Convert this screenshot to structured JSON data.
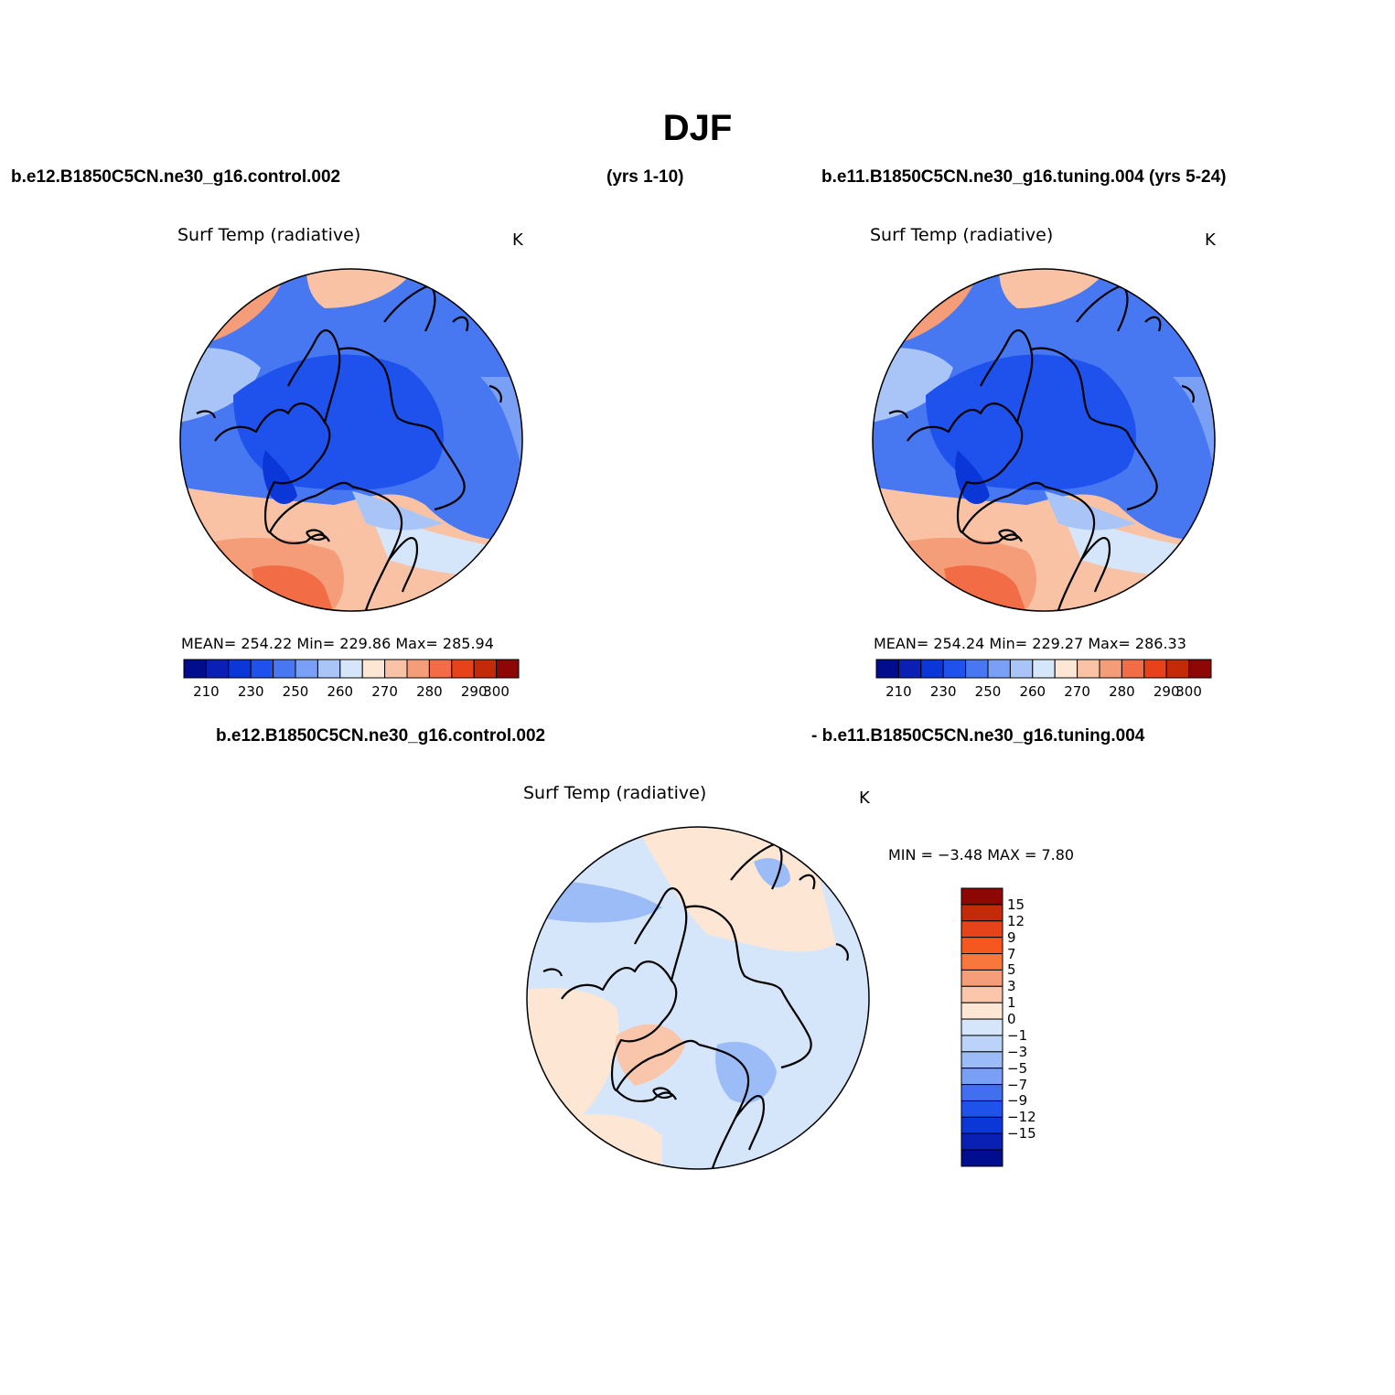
{
  "title": "DJF",
  "case1_label": "b.e12.B1850C5CN.ne30_g16.control.002",
  "case1_years": "(yrs 1-10)",
  "case2_label": "b.e11.B1850C5CN.ne30_g16.tuning.004 (yrs 5-24)",
  "diff_label_a": "b.e12.B1850C5CN.ne30_g16.control.002",
  "diff_label_b": "- b.e11.B1850C5CN.ne30_g16.tuning.004",
  "panels": [
    {
      "id": "control",
      "variable": "Surf Temp (radiative)",
      "units": "K",
      "stats": "MEAN= 254.22   Min= 229.86   Max= 285.94",
      "colorbar_ticks": [
        "210",
        "230",
        "250",
        "260",
        "270",
        "280",
        "290",
        "300"
      ]
    },
    {
      "id": "tuning",
      "variable": "Surf Temp (radiative)",
      "units": "K",
      "stats": "MEAN= 254.24   Min= 229.27   Max= 286.33",
      "colorbar_ticks": [
        "210",
        "230",
        "250",
        "260",
        "270",
        "280",
        "290",
        "300"
      ]
    },
    {
      "id": "difference",
      "variable": "Surf Temp (radiative)",
      "units": "K",
      "stats": "MIN =   −3.48 MAX =    7.80",
      "colorbar_ticks": [
        "15",
        "12",
        "9",
        "7",
        "5",
        "3",
        "1",
        "0",
        "−1",
        "−3",
        "−5",
        "−7",
        "−9",
        "−12",
        "−15"
      ]
    }
  ],
  "palette": {
    "abs": [
      "#000d8c",
      "#0a1fb4",
      "#0b36d8",
      "#1f52ec",
      "#4778f2",
      "#7aa0f6",
      "#a9c4f6",
      "#d5e6fb",
      "#fde6d4",
      "#f9c2a5",
      "#f59c78",
      "#f26d45",
      "#e6431a",
      "#c22a08",
      "#8c0705"
    ],
    "diff": [
      "#8c0705",
      "#c22a08",
      "#e6431a",
      "#f5581f",
      "#f7773c",
      "#f59c78",
      "#f9c6ab",
      "#fde6d4",
      "#d5e6fb",
      "#bcd3f9",
      "#9cbcf8",
      "#7aa0f6",
      "#4170ee",
      "#1f52ec",
      "#0b36d8",
      "#0a1fb4",
      "#000d8c"
    ]
  }
}
